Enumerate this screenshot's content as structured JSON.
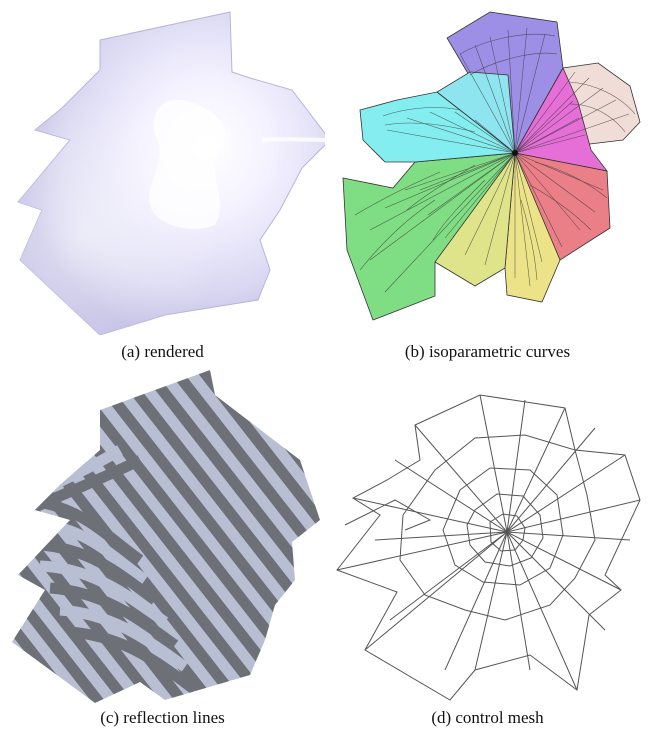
{
  "figure": {
    "panels": [
      {
        "caption": "(a) rendered"
      },
      {
        "caption": "(b) isoparametric curves"
      },
      {
        "caption": "(c) reflection lines"
      },
      {
        "caption": "(d) control mesh"
      }
    ],
    "colors": {
      "rendered_surface": "#d9d7f1",
      "patch_colors": [
        "#9d8fe6",
        "#f1ddd8",
        "#e56fd7",
        "#ea7f87",
        "#ece389",
        "#dfe38a",
        "#7fdd83",
        "#84edf0"
      ],
      "stripe_dark": "#6e7077",
      "stripe_light": "#b9bfd3",
      "mesh_line": "#555555"
    }
  }
}
